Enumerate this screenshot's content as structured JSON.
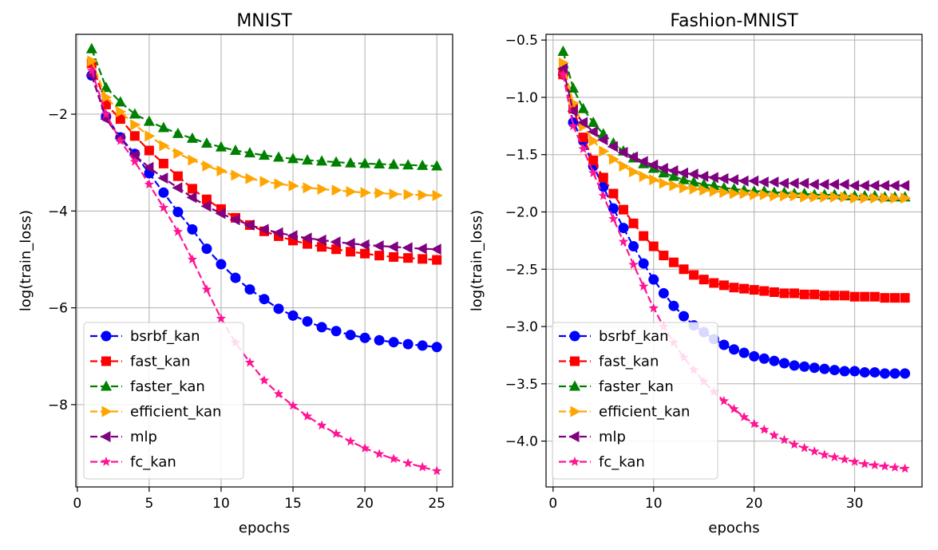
{
  "chart_data": [
    {
      "type": "line",
      "title": "MNIST",
      "xlabel": "epochs",
      "ylabel": "log(train_loss)",
      "xlim": [
        -0.1,
        26.1
      ],
      "ylim": [
        -9.7,
        -0.35
      ],
      "xticks": [
        0,
        5,
        10,
        15,
        20,
        25
      ],
      "yticks": [
        -8,
        -6,
        -4,
        -2
      ],
      "xtick_labels": [
        "0",
        "5",
        "10",
        "15",
        "20",
        "25"
      ],
      "ytick_labels": [
        "−8",
        "−6",
        "−4",
        "−2"
      ],
      "grid": true,
      "legend_position": "lower-left",
      "series": [
        {
          "name": "bsrbf_kan",
          "color": "#0000ff",
          "marker": "circle",
          "linestyle": "dashed",
          "values": [
            -1.2,
            -2.05,
            -2.48,
            -2.82,
            -3.22,
            -3.62,
            -4.02,
            -4.38,
            -4.78,
            -5.1,
            -5.38,
            -5.62,
            -5.82,
            -6.02,
            -6.16,
            -6.28,
            -6.4,
            -6.48,
            -6.56,
            -6.62,
            -6.67,
            -6.71,
            -6.75,
            -6.78,
            -6.81
          ]
        },
        {
          "name": "fast_kan",
          "color": "#ff0000",
          "marker": "square",
          "linestyle": "dashed",
          "values": [
            -0.95,
            -1.8,
            -2.1,
            -2.45,
            -2.75,
            -3.02,
            -3.28,
            -3.54,
            -3.76,
            -3.96,
            -4.14,
            -4.29,
            -4.42,
            -4.52,
            -4.61,
            -4.68,
            -4.74,
            -4.79,
            -4.84,
            -4.88,
            -4.92,
            -4.95,
            -4.97,
            -4.99,
            -5.01
          ]
        },
        {
          "name": "faster_kan",
          "color": "#008000",
          "marker": "triangle-up",
          "linestyle": "dashed",
          "values": [
            -0.65,
            -1.45,
            -1.75,
            -2.0,
            -2.15,
            -2.28,
            -2.4,
            -2.5,
            -2.6,
            -2.68,
            -2.75,
            -2.8,
            -2.85,
            -2.89,
            -2.92,
            -2.95,
            -2.97,
            -2.99,
            -3.01,
            -3.02,
            -3.03,
            -3.04,
            -3.05,
            -3.06,
            -3.07
          ]
        },
        {
          "name": "efficient_kan",
          "color": "#ffa500",
          "marker": "triangle-right",
          "linestyle": "dashed",
          "values": [
            -0.9,
            -1.65,
            -1.95,
            -2.22,
            -2.45,
            -2.65,
            -2.81,
            -2.95,
            -3.07,
            -3.17,
            -3.26,
            -3.33,
            -3.39,
            -3.44,
            -3.48,
            -3.52,
            -3.55,
            -3.57,
            -3.6,
            -3.62,
            -3.63,
            -3.65,
            -3.66,
            -3.67,
            -3.68
          ]
        },
        {
          "name": "mlp",
          "color": "#800080",
          "marker": "triangle-left",
          "linestyle": "dashed",
          "values": [
            -1.2,
            -2.1,
            -2.5,
            -2.85,
            -3.1,
            -3.32,
            -3.52,
            -3.72,
            -3.9,
            -4.05,
            -4.18,
            -4.29,
            -4.38,
            -4.45,
            -4.51,
            -4.56,
            -4.6,
            -4.64,
            -4.67,
            -4.7,
            -4.72,
            -4.74,
            -4.76,
            -4.78,
            -4.79
          ]
        },
        {
          "name": "fc_kan",
          "color": "#ff1493",
          "marker": "star",
          "linestyle": "dashed",
          "values": [
            -1.1,
            -2.0,
            -2.55,
            -2.98,
            -3.45,
            -3.93,
            -4.43,
            -5.0,
            -5.62,
            -6.22,
            -6.72,
            -7.13,
            -7.5,
            -7.78,
            -8.02,
            -8.24,
            -8.43,
            -8.6,
            -8.76,
            -8.9,
            -9.02,
            -9.12,
            -9.21,
            -9.29,
            -9.37
          ]
        }
      ]
    },
    {
      "type": "line",
      "title": "Fashion-MNIST",
      "xlabel": "epochs",
      "ylabel": "log(train_loss)",
      "xlim": [
        -0.7,
        36.7
      ],
      "ylim": [
        -4.4,
        -0.45
      ],
      "xticks": [
        0,
        10,
        20,
        30
      ],
      "yticks": [
        -4.0,
        -3.5,
        -3.0,
        -2.5,
        -2.0,
        -1.5,
        -1.0,
        -0.5
      ],
      "xtick_labels": [
        "0",
        "10",
        "20",
        "30"
      ],
      "ytick_labels": [
        "−4.0",
        "−3.5",
        "−3.0",
        "−2.5",
        "−2.0",
        "−1.5",
        "−1.0",
        "−0.5"
      ],
      "grid": true,
      "legend_position": "lower-left",
      "series": [
        {
          "name": "bsrbf_kan",
          "color": "#0000ff",
          "marker": "circle",
          "linestyle": "dashed",
          "values": [
            -0.8,
            -1.22,
            -1.38,
            -1.6,
            -1.78,
            -1.97,
            -2.14,
            -2.3,
            -2.45,
            -2.59,
            -2.71,
            -2.82,
            -2.91,
            -2.99,
            -3.05,
            -3.11,
            -3.16,
            -3.2,
            -3.23,
            -3.26,
            -3.28,
            -3.3,
            -3.32,
            -3.34,
            -3.35,
            -3.36,
            -3.37,
            -3.38,
            -3.39,
            -3.39,
            -3.4,
            -3.4,
            -3.41,
            -3.41,
            -3.41
          ]
        },
        {
          "name": "fast_kan",
          "color": "#ff0000",
          "marker": "square",
          "linestyle": "dashed",
          "values": [
            -0.8,
            -1.1,
            -1.35,
            -1.55,
            -1.7,
            -1.84,
            -1.98,
            -2.1,
            -2.21,
            -2.3,
            -2.38,
            -2.44,
            -2.5,
            -2.55,
            -2.59,
            -2.62,
            -2.64,
            -2.66,
            -2.67,
            -2.68,
            -2.69,
            -2.7,
            -2.71,
            -2.71,
            -2.72,
            -2.72,
            -2.73,
            -2.73,
            -2.73,
            -2.74,
            -2.74,
            -2.74,
            -2.75,
            -2.75,
            -2.75
          ]
        },
        {
          "name": "faster_kan",
          "color": "#008000",
          "marker": "triangle-up",
          "linestyle": "dashed",
          "values": [
            -0.6,
            -0.92,
            -1.1,
            -1.22,
            -1.32,
            -1.4,
            -1.47,
            -1.53,
            -1.58,
            -1.62,
            -1.66,
            -1.69,
            -1.72,
            -1.74,
            -1.76,
            -1.77,
            -1.79,
            -1.8,
            -1.81,
            -1.82,
            -1.82,
            -1.83,
            -1.83,
            -1.84,
            -1.84,
            -1.85,
            -1.85,
            -1.85,
            -1.86,
            -1.86,
            -1.86,
            -1.86,
            -1.87,
            -1.87,
            -1.87
          ]
        },
        {
          "name": "efficient_kan",
          "color": "#ffa500",
          "marker": "triangle-right",
          "linestyle": "dashed",
          "values": [
            -0.7,
            -1.05,
            -1.25,
            -1.38,
            -1.47,
            -1.54,
            -1.6,
            -1.65,
            -1.69,
            -1.72,
            -1.75,
            -1.77,
            -1.79,
            -1.8,
            -1.81,
            -1.82,
            -1.83,
            -1.84,
            -1.84,
            -1.85,
            -1.85,
            -1.86,
            -1.86,
            -1.86,
            -1.87,
            -1.87,
            -1.87,
            -1.87,
            -1.87,
            -1.88,
            -1.88,
            -1.88,
            -1.88,
            -1.88,
            -1.88
          ]
        },
        {
          "name": "mlp",
          "color": "#800080",
          "marker": "triangle-left",
          "linestyle": "dashed",
          "values": [
            -0.75,
            -1.12,
            -1.22,
            -1.3,
            -1.37,
            -1.43,
            -1.48,
            -1.52,
            -1.56,
            -1.59,
            -1.62,
            -1.64,
            -1.66,
            -1.67,
            -1.69,
            -1.7,
            -1.71,
            -1.72,
            -1.73,
            -1.73,
            -1.74,
            -1.74,
            -1.75,
            -1.75,
            -1.75,
            -1.76,
            -1.76,
            -1.76,
            -1.76,
            -1.77,
            -1.77,
            -1.77,
            -1.77,
            -1.77,
            -1.77
          ]
        },
        {
          "name": "fc_kan",
          "color": "#ff1493",
          "marker": "star",
          "linestyle": "dashed",
          "values": [
            -0.8,
            -1.25,
            -1.45,
            -1.66,
            -1.86,
            -2.06,
            -2.26,
            -2.46,
            -2.65,
            -2.84,
            -3.0,
            -3.14,
            -3.27,
            -3.38,
            -3.48,
            -3.57,
            -3.65,
            -3.72,
            -3.79,
            -3.85,
            -3.9,
            -3.95,
            -3.99,
            -4.03,
            -4.06,
            -4.09,
            -4.12,
            -4.14,
            -4.16,
            -4.18,
            -4.2,
            -4.21,
            -4.22,
            -4.23,
            -4.24
          ]
        }
      ]
    }
  ]
}
